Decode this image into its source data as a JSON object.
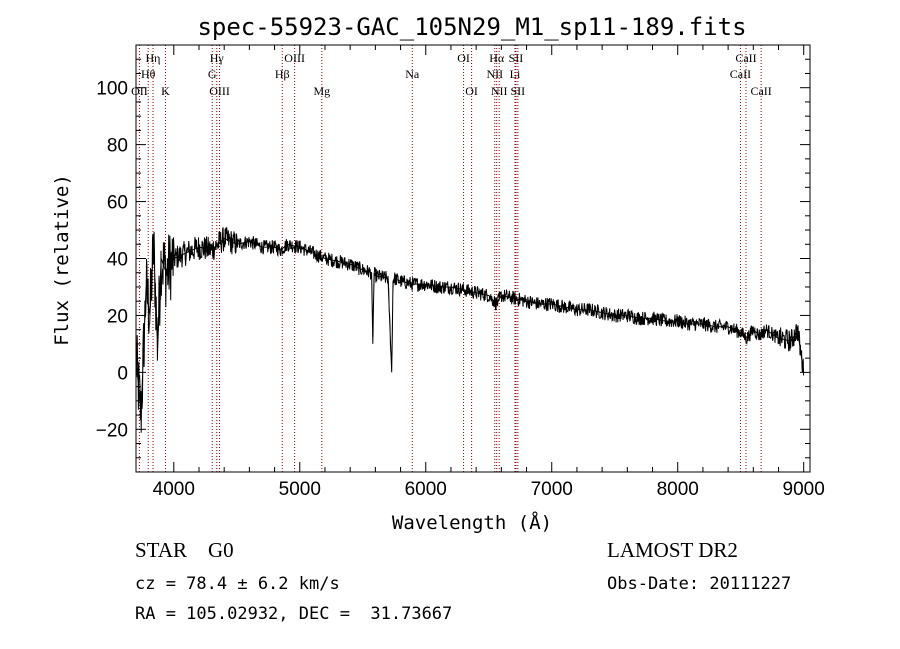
{
  "chart_data": {
    "type": "line",
    "title": "spec-55923-GAC_105N29_M1_sp11-189.fits",
    "xlabel": "Wavelength (Å)",
    "ylabel": "Flux (relative)",
    "xlim": [
      3700,
      9050
    ],
    "ylim": [
      -35,
      115
    ],
    "xticks": [
      "4000",
      "5000",
      "6000",
      "7000",
      "8000",
      "9000"
    ],
    "yticks": [
      "-20",
      "0",
      "20",
      "40",
      "60",
      "80",
      "100"
    ],
    "spectrum": {
      "x": [
        3700,
        3740,
        3780,
        3810,
        3840,
        3870,
        3900,
        3940,
        4000,
        4100,
        4200,
        4300,
        4400,
        4500,
        4600,
        4700,
        4800,
        4850,
        4900,
        5000,
        5100,
        5200,
        5300,
        5400,
        5500,
        5570,
        5580,
        5590,
        5600,
        5700,
        5730,
        5740,
        5750,
        5800,
        5900,
        6000,
        6100,
        6200,
        6300,
        6400,
        6500,
        6563,
        6600,
        6700,
        6800,
        6900,
        7000,
        7100,
        7200,
        7300,
        7400,
        7500,
        7600,
        7700,
        7800,
        7900,
        8000,
        8100,
        8200,
        8300,
        8400,
        8500,
        8550,
        8600,
        8650,
        8700,
        8800,
        8900,
        8950,
        9000
      ],
      "y": [
        5,
        -15,
        30,
        20,
        45,
        10,
        40,
        35,
        40,
        42,
        44,
        43,
        47,
        45,
        46,
        44,
        44,
        43,
        45,
        44,
        42,
        40,
        39,
        38,
        36,
        35,
        10,
        35,
        34,
        33,
        0,
        32,
        33,
        32,
        31,
        31,
        30,
        30,
        29,
        28,
        27,
        24,
        27,
        26,
        25,
        24,
        24,
        23,
        22,
        22,
        21,
        20,
        20,
        19,
        19,
        18,
        18,
        17,
        17,
        16,
        16,
        14,
        12,
        15,
        13,
        15,
        12,
        11,
        15,
        0
      ]
    },
    "lines": [
      {
        "label": "Hη",
        "wavelength": 3835,
        "row": 0
      },
      {
        "label": "Hθ",
        "wavelength": 3797,
        "row": 1
      },
      {
        "label": "OII",
        "wavelength": 3727,
        "row": 2
      },
      {
        "label": "K",
        "wavelength": 3934,
        "row": 2
      },
      {
        "label": "Hγ",
        "wavelength": 4341,
        "row": 0
      },
      {
        "label": "G",
        "wavelength": 4305,
        "row": 1
      },
      {
        "label": "OIII",
        "wavelength": 4363,
        "row": 2
      },
      {
        "label": "Hβ",
        "wavelength": 4861,
        "row": 1
      },
      {
        "label": "OIII",
        "wavelength": 4959,
        "row": 0
      },
      {
        "label": "Mg",
        "wavelength": 5175,
        "row": 2
      },
      {
        "label": "Na",
        "wavelength": 5893,
        "row": 1
      },
      {
        "label": "OI",
        "wavelength": 6300,
        "row": 0
      },
      {
        "label": "OI",
        "wavelength": 6364,
        "row": 2
      },
      {
        "label": "Hα",
        "wavelength": 6563,
        "row": 0
      },
      {
        "label": "NII",
        "wavelength": 6548,
        "row": 1
      },
      {
        "label": "NII",
        "wavelength": 6583,
        "row": 2
      },
      {
        "label": "SII",
        "wavelength": 6716,
        "row": 0
      },
      {
        "label": "Li",
        "wavelength": 6708,
        "row": 1
      },
      {
        "label": "SII",
        "wavelength": 6731,
        "row": 2
      },
      {
        "label": "CaII",
        "wavelength": 8542,
        "row": 0
      },
      {
        "label": "CaII",
        "wavelength": 8498,
        "row": 1
      },
      {
        "label": "CaII",
        "wavelength": 8662,
        "row": 2
      }
    ],
    "line_color": "#000000",
    "marker_color": "#8b0000"
  },
  "footer": {
    "class_label": "STAR    G0",
    "cz": "cz = 78.4 ± 6.2 km/s",
    "radec": "RA = 105.02932, DEC =  31.73667",
    "survey": "LAMOST DR2",
    "obs_date": "Obs-Date: 20111227"
  }
}
